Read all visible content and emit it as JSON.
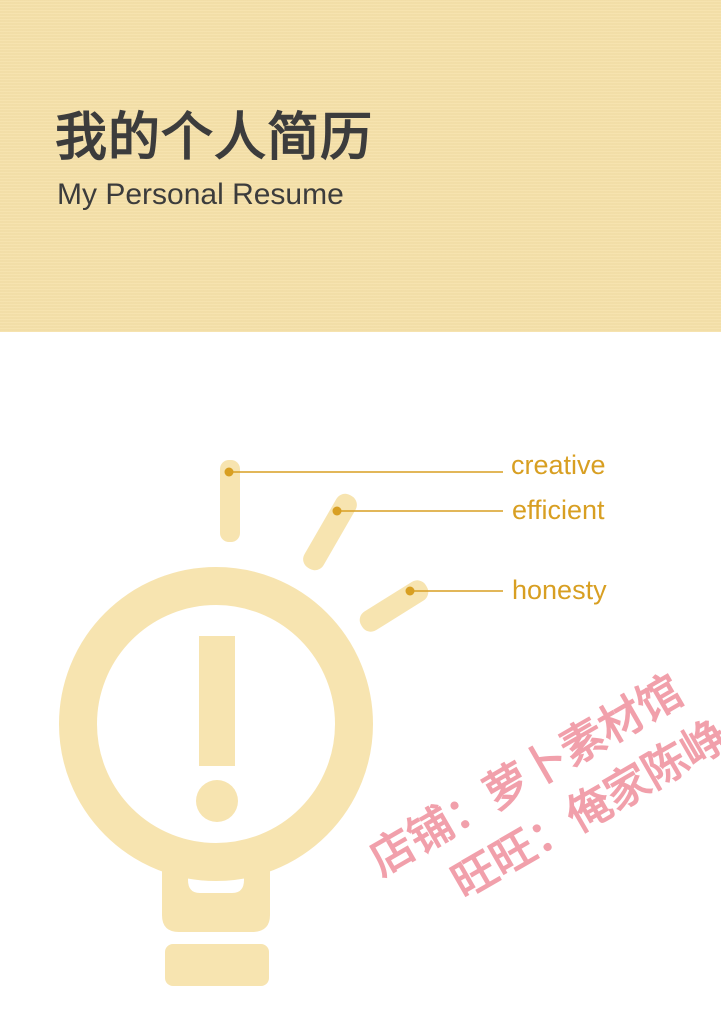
{
  "header": {
    "title_cn": "我的个人简历",
    "title_en": "My Personal Resume",
    "background_color": "#f6e1aa"
  },
  "traits": {
    "items": [
      "creative",
      "efficient",
      "honesty"
    ],
    "color": "#d89f22"
  },
  "illustration": {
    "icon": "lightbulb-exclamation-icon",
    "color": "#f7e4b0"
  },
  "watermark": {
    "line1": "店铺：萝卜素材馆",
    "line2": "旺旺：俺家陈峥"
  }
}
